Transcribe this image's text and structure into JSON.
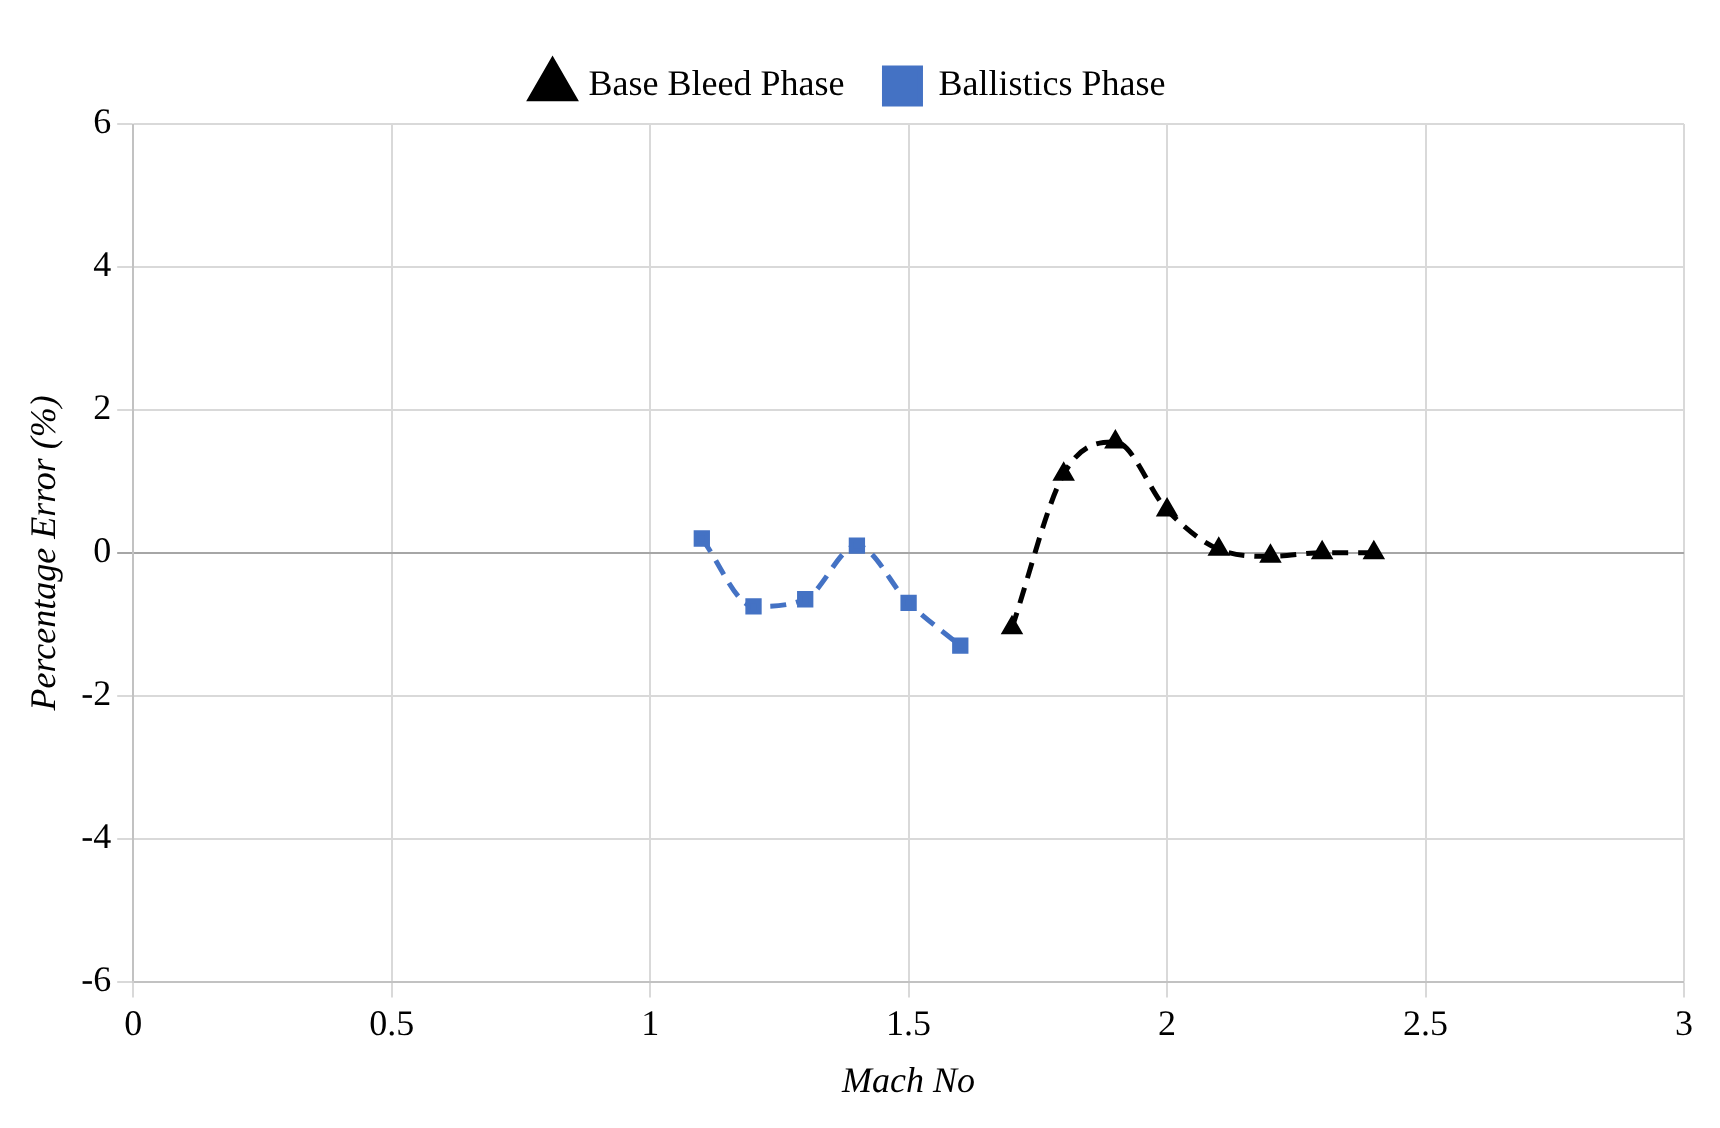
{
  "chart_data": {
    "type": "line",
    "xlabel": "Mach No",
    "ylabel": "Percentage Error (%)",
    "xlim": [
      0,
      3
    ],
    "xticks": [
      0,
      0.5,
      1,
      1.5,
      2,
      2.5,
      3
    ],
    "ylim": [
      -6,
      6
    ],
    "yticks": [
      -6,
      -4,
      -2,
      0,
      2,
      4,
      6
    ],
    "grid": true,
    "legend": "top",
    "line_style": "dashed",
    "series": [
      {
        "name": "Base Bleed Phase",
        "color": "#000000",
        "marker": "triangle",
        "x": [
          1.7,
          1.8,
          1.9,
          2.0,
          2.1,
          2.2,
          2.3,
          2.4
        ],
        "values": [
          -1.05,
          1.1,
          1.55,
          0.6,
          0.05,
          -0.05,
          0,
          0
        ]
      },
      {
        "name": "Ballistics Phase",
        "color": "#4472c4",
        "marker": "square",
        "x": [
          1.1,
          1.2,
          1.3,
          1.4,
          1.5,
          1.6
        ],
        "values": [
          0.2,
          -0.75,
          -0.65,
          0.1,
          -0.7,
          -1.3
        ]
      }
    ]
  }
}
